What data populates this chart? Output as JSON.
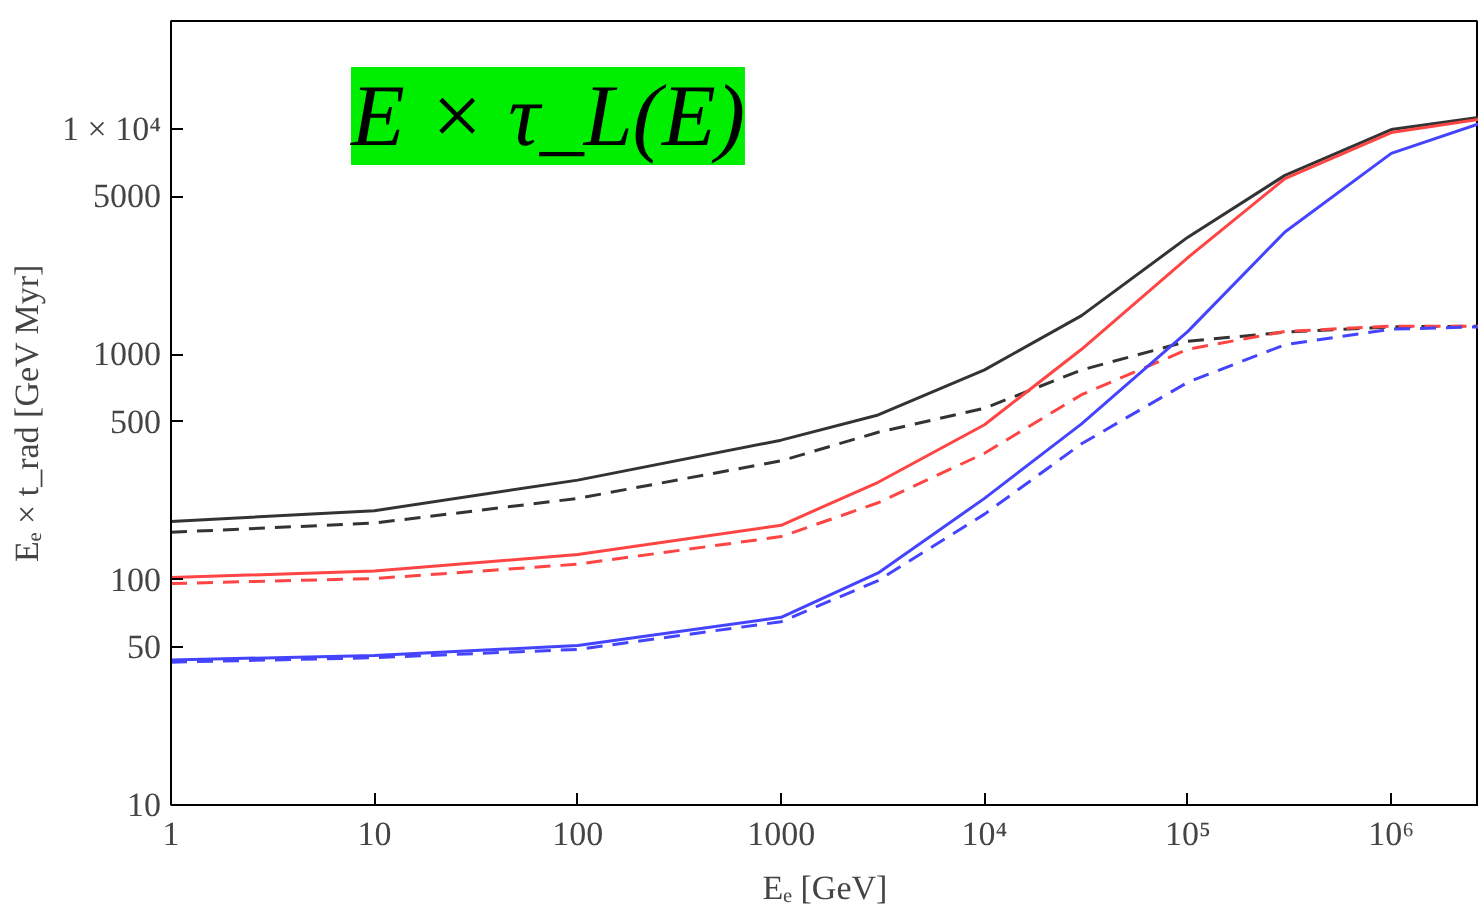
{
  "chart_data": {
    "type": "line",
    "xlabel": "Eₑ [GeV]",
    "ylabel": "Eₑ × t_rad [GeV Myr]",
    "log": "xy",
    "grid": false,
    "annotations": [
      "E × τ_L(E)"
    ],
    "xlim": [
      1,
      2700000
    ],
    "ylim": [
      10,
      30000
    ],
    "xticks": [
      1,
      10,
      100,
      1000,
      {
        "value": 10000,
        "label": "10⁴"
      },
      {
        "value": 100000,
        "label": "10⁵"
      },
      {
        "value": 1000000,
        "label": "10⁶"
      }
    ],
    "yticks": [
      10,
      50,
      100,
      500,
      1000,
      5000,
      {
        "value": 10000,
        "label": "1 × 10⁴"
      }
    ],
    "x": [
      1,
      10,
      100,
      1000,
      3000,
      10000,
      30000,
      100000,
      300000,
      1000000,
      2700000
    ],
    "series": [
      {
        "color": "#333333",
        "line_style": "solid",
        "values": [
          181,
          202,
          276,
          415,
          537,
          851,
          1480,
          3300,
          6200,
          9900,
          11200
        ]
      },
      {
        "color": "#333333",
        "line_style": "dashed",
        "values": [
          162,
          178,
          229,
          336,
          450,
          575,
          850,
          1140,
          1250,
          1320,
          1330
        ]
      },
      {
        "color": "#ff4444",
        "line_style": "solid",
        "values": [
          102,
          109,
          129,
          174,
          270,
          486,
          1050,
          2680,
          6000,
          9600,
          11000
        ]
      },
      {
        "color": "#ff4444",
        "line_style": "dashed",
        "values": [
          96,
          101,
          117,
          155,
          219,
          363,
          660,
          1050,
          1260,
          1330,
          1330
        ]
      },
      {
        "color": "#4444ff",
        "line_style": "solid",
        "values": [
          44,
          46,
          51,
          68,
          107,
          229,
          490,
          1260,
          3480,
          7760,
          10500
        ]
      },
      {
        "color": "#4444ff",
        "line_style": "dashed",
        "values": [
          43,
          45,
          49,
          65,
          99,
          195,
          400,
          750,
          1100,
          1290,
          1320
        ]
      }
    ]
  }
}
